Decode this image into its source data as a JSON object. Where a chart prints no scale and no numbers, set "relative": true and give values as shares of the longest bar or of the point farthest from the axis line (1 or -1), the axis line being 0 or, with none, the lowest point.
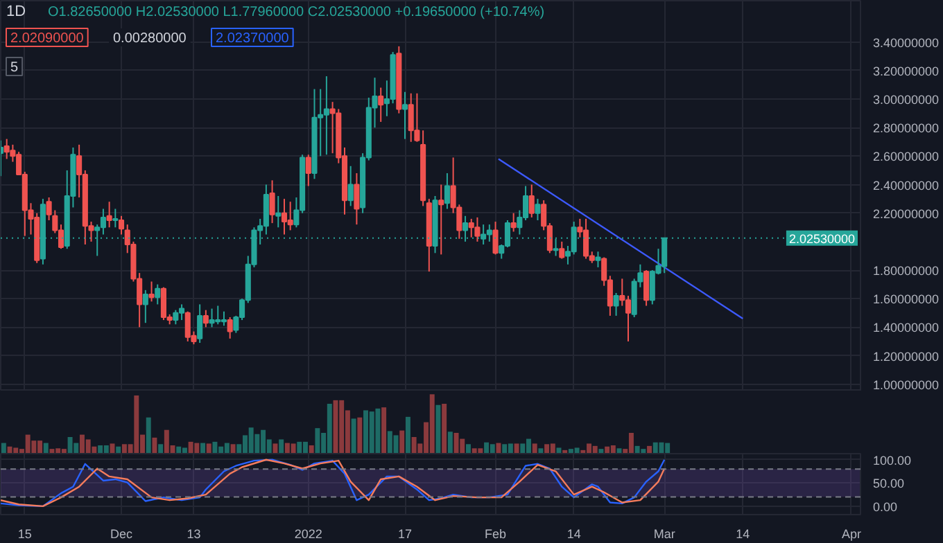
{
  "chart_data": [
    {
      "type": "candlestick",
      "title": "1D",
      "subtitle": "O1.82650000 H2.02530000 L1.77960000 C2.02530000 +0.19650000 (+10.74%)",
      "annotations": [
        "2.02090000",
        "0.00280000",
        "2.02370000",
        "5"
      ],
      "x": [
        "2021-11-11",
        "2021-11-12",
        "2021-11-13",
        "2021-11-14",
        "2021-11-15",
        "2021-11-16",
        "2021-11-17",
        "2021-11-18",
        "2021-11-19",
        "2021-11-20",
        "2021-11-21",
        "2021-11-22",
        "2021-11-23",
        "2021-11-24",
        "2021-11-25",
        "2021-11-26",
        "2021-11-27",
        "2021-11-28",
        "2021-11-29",
        "2021-11-30",
        "2021-12-01",
        "2021-12-02",
        "2021-12-03",
        "2021-12-04",
        "2021-12-05",
        "2021-12-06",
        "2021-12-07",
        "2021-12-08",
        "2021-12-09",
        "2021-12-10",
        "2021-12-11",
        "2021-12-12",
        "2021-12-13",
        "2021-12-14",
        "2021-12-15",
        "2021-12-16",
        "2021-12-17",
        "2021-12-18",
        "2021-12-19",
        "2021-12-20",
        "2021-12-21",
        "2021-12-22",
        "2021-12-23",
        "2021-12-24",
        "2021-12-25",
        "2021-12-26",
        "2021-12-27",
        "2021-12-28",
        "2021-12-29",
        "2021-12-30",
        "2021-12-31",
        "2022-01-01",
        "2022-01-02",
        "2022-01-03",
        "2022-01-04",
        "2022-01-05",
        "2022-01-06",
        "2022-01-07",
        "2022-01-08",
        "2022-01-09",
        "2022-01-10",
        "2022-01-11",
        "2022-01-12",
        "2022-01-13",
        "2022-01-14",
        "2022-01-15",
        "2022-01-16",
        "2022-01-17",
        "2022-01-18",
        "2022-01-19",
        "2022-01-20",
        "2022-01-21",
        "2022-01-22",
        "2022-01-23",
        "2022-01-24",
        "2022-01-25",
        "2022-01-26",
        "2022-01-27",
        "2022-01-28",
        "2022-01-29",
        "2022-01-30",
        "2022-01-31",
        "2022-02-01",
        "2022-02-02",
        "2022-02-03",
        "2022-02-04",
        "2022-02-05",
        "2022-02-06",
        "2022-02-07",
        "2022-02-08",
        "2022-02-09",
        "2022-02-10",
        "2022-02-11",
        "2022-02-12",
        "2022-02-13",
        "2022-02-14",
        "2022-02-15",
        "2022-02-16",
        "2022-02-17",
        "2022-02-18",
        "2022-02-19",
        "2022-02-20",
        "2022-02-21",
        "2022-02-22",
        "2022-02-23",
        "2022-02-24",
        "2022-02-25",
        "2022-02-26",
        "2022-02-27",
        "2022-02-28",
        "2022-03-01"
      ],
      "ohlc": [
        [
          2.62,
          2.71,
          2.46,
          2.66
        ],
        [
          2.67,
          2.72,
          2.58,
          2.63
        ],
        [
          2.64,
          2.68,
          2.56,
          2.6
        ],
        [
          2.61,
          2.63,
          2.47,
          2.47
        ],
        [
          2.47,
          2.49,
          2.04,
          2.22
        ],
        [
          2.22,
          2.27,
          2.05,
          2.16
        ],
        [
          2.17,
          2.2,
          1.85,
          1.87
        ],
        [
          1.88,
          2.3,
          1.84,
          2.26
        ],
        [
          2.28,
          2.31,
          2.15,
          2.19
        ],
        [
          2.18,
          2.22,
          2.06,
          2.08
        ],
        [
          2.08,
          2.12,
          1.95,
          1.96
        ],
        [
          1.97,
          2.5,
          1.95,
          2.32
        ],
        [
          2.32,
          2.66,
          2.24,
          2.61
        ],
        [
          2.6,
          2.68,
          2.31,
          2.47
        ],
        [
          2.47,
          2.5,
          1.98,
          2.11
        ],
        [
          2.11,
          2.14,
          2.0,
          2.08
        ],
        [
          2.08,
          2.12,
          1.9,
          2.1
        ],
        [
          2.1,
          2.23,
          2.05,
          2.17
        ],
        [
          2.18,
          2.28,
          2.1,
          2.15
        ],
        [
          2.15,
          2.23,
          2.1,
          2.16
        ],
        [
          2.15,
          2.18,
          2.05,
          2.09
        ],
        [
          2.08,
          2.12,
          1.92,
          1.98
        ],
        [
          1.98,
          2.0,
          1.72,
          1.74
        ],
        [
          1.74,
          1.78,
          1.4,
          1.56
        ],
        [
          1.56,
          1.66,
          1.43,
          1.63
        ],
        [
          1.63,
          1.72,
          1.58,
          1.61
        ],
        [
          1.61,
          1.7,
          1.56,
          1.67
        ],
        [
          1.67,
          1.68,
          1.45,
          1.47
        ],
        [
          1.47,
          1.49,
          1.42,
          1.45
        ],
        [
          1.45,
          1.52,
          1.42,
          1.5
        ],
        [
          1.5,
          1.56,
          1.45,
          1.53
        ],
        [
          1.5,
          1.51,
          1.3,
          1.33
        ],
        [
          1.34,
          1.37,
          1.28,
          1.3
        ],
        [
          1.32,
          1.56,
          1.29,
          1.48
        ],
        [
          1.48,
          1.52,
          1.4,
          1.43
        ],
        [
          1.43,
          1.53,
          1.4,
          1.45
        ],
        [
          1.44,
          1.55,
          1.42,
          1.45
        ],
        [
          1.44,
          1.51,
          1.41,
          1.45
        ],
        [
          1.45,
          1.47,
          1.32,
          1.37
        ],
        [
          1.38,
          1.48,
          1.36,
          1.47
        ],
        [
          1.47,
          1.6,
          1.45,
          1.59
        ],
        [
          1.59,
          1.9,
          1.57,
          1.84
        ],
        [
          1.84,
          2.1,
          1.82,
          2.08
        ],
        [
          2.08,
          2.16,
          1.98,
          2.11
        ],
        [
          2.11,
          2.4,
          2.05,
          2.33
        ],
        [
          2.34,
          2.43,
          2.13,
          2.19
        ],
        [
          2.18,
          2.32,
          2.1,
          2.2
        ],
        [
          2.2,
          2.3,
          2.05,
          2.14
        ],
        [
          2.15,
          2.28,
          2.08,
          2.12
        ],
        [
          2.12,
          2.31,
          2.1,
          2.22
        ],
        [
          2.22,
          2.61,
          2.2,
          2.59
        ],
        [
          2.59,
          2.61,
          2.39,
          2.48
        ],
        [
          2.48,
          3.07,
          2.44,
          2.87
        ],
        [
          2.87,
          3.07,
          2.6,
          2.89
        ],
        [
          2.89,
          3.16,
          2.61,
          2.93
        ],
        [
          2.93,
          2.98,
          2.62,
          2.9
        ],
        [
          2.9,
          2.93,
          2.55,
          2.59
        ],
        [
          2.6,
          2.66,
          2.19,
          2.29
        ],
        [
          2.29,
          2.53,
          2.25,
          2.4
        ],
        [
          2.4,
          2.48,
          2.12,
          2.23
        ],
        [
          2.24,
          2.62,
          2.2,
          2.59
        ],
        [
          2.59,
          3.01,
          2.57,
          2.94
        ],
        [
          2.94,
          3.15,
          2.8,
          3.02
        ],
        [
          3.02,
          3.08,
          2.84,
          2.96
        ],
        [
          2.97,
          3.13,
          2.88,
          3.0
        ],
        [
          3.0,
          3.33,
          2.97,
          3.31
        ],
        [
          3.32,
          3.37,
          2.9,
          2.93
        ],
        [
          2.93,
          3.05,
          2.72,
          2.96
        ],
        [
          2.96,
          3.04,
          2.7,
          2.78
        ],
        [
          2.78,
          3.04,
          2.7,
          2.71
        ],
        [
          2.68,
          2.78,
          2.25,
          2.29
        ],
        [
          2.27,
          2.3,
          1.79,
          1.97
        ],
        [
          1.97,
          2.32,
          1.92,
          2.29
        ],
        [
          2.29,
          2.4,
          1.91,
          2.26
        ],
        [
          2.27,
          2.48,
          2.23,
          2.39
        ],
        [
          2.39,
          2.59,
          2.2,
          2.24
        ],
        [
          2.24,
          2.26,
          2.02,
          2.08
        ],
        [
          2.08,
          2.18,
          2.0,
          2.13
        ],
        [
          2.13,
          2.16,
          2.03,
          2.1
        ],
        [
          2.1,
          2.17,
          2.0,
          2.04
        ],
        [
          2.02,
          2.12,
          1.98,
          2.05
        ],
        [
          2.05,
          2.12,
          2.0,
          2.08
        ],
        [
          2.08,
          2.14,
          1.91,
          1.92
        ],
        [
          1.92,
          1.98,
          1.88,
          1.97
        ],
        [
          1.97,
          2.15,
          1.96,
          2.13
        ],
        [
          2.13,
          2.2,
          2.07,
          2.1
        ],
        [
          2.1,
          2.22,
          2.05,
          2.17
        ],
        [
          2.17,
          2.39,
          2.15,
          2.32
        ],
        [
          2.32,
          2.4,
          2.17,
          2.2
        ],
        [
          2.2,
          2.3,
          2.15,
          2.26
        ],
        [
          2.26,
          2.29,
          2.08,
          2.11
        ],
        [
          2.11,
          2.13,
          1.92,
          1.94
        ],
        [
          1.94,
          2.02,
          1.9,
          1.95
        ],
        [
          1.95,
          2.0,
          1.88,
          1.89
        ],
        [
          1.9,
          1.97,
          1.84,
          1.93
        ],
        [
          1.93,
          2.14,
          1.91,
          2.1
        ],
        [
          2.1,
          2.16,
          2.03,
          2.07
        ],
        [
          2.08,
          2.16,
          1.88,
          1.9
        ],
        [
          1.9,
          1.93,
          1.85,
          1.87
        ],
        [
          1.87,
          1.93,
          1.82,
          1.89
        ],
        [
          1.88,
          1.89,
          1.69,
          1.73
        ],
        [
          1.73,
          1.76,
          1.48,
          1.55
        ],
        [
          1.55,
          1.64,
          1.48,
          1.62
        ],
        [
          1.62,
          1.74,
          1.55,
          1.59
        ],
        [
          1.59,
          1.62,
          1.3,
          1.5
        ],
        [
          1.49,
          1.74,
          1.47,
          1.72
        ],
        [
          1.72,
          1.84,
          1.68,
          1.78
        ],
        [
          1.79,
          1.8,
          1.55,
          1.59
        ],
        [
          1.59,
          1.8,
          1.56,
          1.79
        ],
        [
          1.78,
          1.95,
          1.77,
          1.83
        ],
        [
          1.8265,
          2.0253,
          1.7796,
          2.0253
        ]
      ],
      "colors": [
        "#26a69a",
        "#ef5350",
        "#ef5350",
        "#ef5350",
        "#ef5350",
        "#ef5350",
        "#ef5350",
        "#26a69a",
        "#ef5350",
        "#ef5350",
        "#ef5350",
        "#26a69a",
        "#26a69a",
        "#ef5350",
        "#ef5350",
        "#ef5350",
        "#26a69a",
        "#26a69a",
        "#ef5350",
        "#26a69a",
        "#ef5350",
        "#ef5350",
        "#ef5350",
        "#ef5350",
        "#26a69a",
        "#ef5350",
        "#26a69a",
        "#ef5350",
        "#ef5350",
        "#26a69a",
        "#26a69a",
        "#ef5350",
        "#ef5350",
        "#26a69a",
        "#ef5350",
        "#26a69a",
        "#26a69a",
        "#26a69a",
        "#ef5350",
        "#26a69a",
        "#26a69a",
        "#26a69a",
        "#26a69a",
        "#26a69a",
        "#26a69a",
        "#ef5350",
        "#26a69a",
        "#ef5350",
        "#ef5350",
        "#26a69a",
        "#26a69a",
        "#ef5350",
        "#26a69a",
        "#26a69a",
        "#26a69a",
        "#ef5350",
        "#ef5350",
        "#ef5350",
        "#26a69a",
        "#ef5350",
        "#26a69a",
        "#26a69a",
        "#26a69a",
        "#ef5350",
        "#26a69a",
        "#26a69a",
        "#ef5350",
        "#26a69a",
        "#ef5350",
        "#ef5350",
        "#ef5350",
        "#ef5350",
        "#26a69a",
        "#ef5350",
        "#26a69a",
        "#ef5350",
        "#ef5350",
        "#26a69a",
        "#ef5350",
        "#ef5350",
        "#26a69a",
        "#26a69a",
        "#ef5350",
        "#26a69a",
        "#26a69a",
        "#ef5350",
        "#26a69a",
        "#26a69a",
        "#ef5350",
        "#26a69a",
        "#ef5350",
        "#ef5350",
        "#26a69a",
        "#ef5350",
        "#26a69a",
        "#26a69a",
        "#ef5350",
        "#ef5350",
        "#ef5350",
        "#26a69a",
        "#ef5350",
        "#ef5350",
        "#26a69a",
        "#ef5350",
        "#ef5350",
        "#26a69a",
        "#26a69a",
        "#ef5350",
        "#26a69a",
        "#26a69a",
        "#26a69a"
      ],
      "series": [
        {
          "type": "line",
          "x": [
            "2022-02-01T12:00",
            "2022-03-14"
          ],
          "values": [
            2.58,
            1.46
          ],
          "color": "#3d5afe"
        }
      ],
      "xlim": [
        "2021-11-11",
        "2022-04-02T12:00"
      ],
      "xticks": [
        {
          "value": "2021-11-15",
          "label": null
        },
        {
          "value": "2021-12-01",
          "label": null
        },
        {
          "value": "2021-12-13",
          "label": null
        },
        {
          "value": "2022-01-01",
          "label": null
        },
        {
          "value": "2022-01-17",
          "label": null
        },
        {
          "value": "2022-02-01",
          "label": null
        },
        {
          "value": "2022-02-14",
          "label": null
        },
        {
          "value": "2022-03-01",
          "label": null
        },
        {
          "value": "2022-03-14",
          "label": null
        },
        {
          "value": "2022-04-01",
          "label": null
        }
      ],
      "ylim": [
        0.95,
        3.69
      ],
      "yticks": [
        {
          "value": 1.0,
          "label": "1.00000000"
        },
        {
          "value": 1.2,
          "label": "1.20000000"
        },
        {
          "value": 1.4,
          "label": "1.40000000"
        },
        {
          "value": 1.6,
          "label": "1.60000000"
        },
        {
          "value": 1.8,
          "label": "1.80000000"
        },
        {
          "value": 2.2,
          "label": "2.20000000"
        },
        {
          "value": 2.4,
          "label": "2.40000000"
        },
        {
          "value": 2.6,
          "label": "2.60000000"
        },
        {
          "value": 2.8,
          "label": "2.80000000"
        },
        {
          "value": 3.0,
          "label": "3.00000000"
        },
        {
          "value": 3.2,
          "label": "3.20000000"
        },
        {
          "value": 3.4,
          "label": "3.40000000"
        }
      ],
      "ref_lines": [
        {
          "axis": "y",
          "value": 2.0253,
          "label": "2.02530000",
          "color": "#26a69a",
          "line_style": "dotted"
        }
      ],
      "grid": true,
      "tick_labels": "y"
    },
    {
      "type": "bar",
      "relative": true,
      "categories": [
        null,
        null,
        null,
        null,
        null,
        null,
        null,
        null,
        null,
        null,
        null,
        null,
        null,
        null,
        null,
        null,
        null,
        null,
        null,
        null,
        null,
        null,
        null,
        null,
        null,
        null,
        null,
        null,
        null,
        null,
        null,
        null,
        null,
        null,
        null,
        null,
        null,
        null,
        null,
        null,
        null,
        null,
        null,
        null,
        null,
        null,
        null,
        null,
        null,
        null,
        null,
        null,
        null,
        null,
        null,
        null,
        null,
        null,
        null,
        null,
        null,
        null,
        null,
        null,
        null,
        null,
        null,
        null,
        null,
        null,
        null,
        null,
        null,
        null,
        null,
        null,
        null,
        null,
        null,
        null,
        null,
        null,
        null,
        null,
        null,
        null,
        null,
        null,
        null,
        null,
        null,
        null,
        null,
        null,
        null,
        null,
        null,
        null,
        null,
        null,
        null,
        null,
        null,
        null,
        null,
        null,
        null,
        null,
        null,
        null,
        null
      ],
      "values": [
        0.18,
        0.12,
        0.1,
        0.08,
        0.32,
        0.22,
        0.22,
        0.18,
        0.08,
        0.09,
        0.08,
        0.28,
        0.18,
        0.32,
        0.24,
        0.12,
        0.14,
        0.14,
        0.17,
        0.12,
        0.16,
        0.16,
        0.98,
        0.32,
        0.61,
        0.27,
        0.16,
        0.4,
        0.14,
        0.12,
        0.1,
        0.2,
        0.18,
        0.18,
        0.17,
        0.2,
        0.12,
        0.18,
        0.16,
        0.16,
        0.31,
        0.44,
        0.33,
        0.4,
        0.24,
        0.17,
        0.24,
        0.18,
        0.17,
        0.2,
        0.2,
        0.14,
        0.43,
        0.35,
        0.84,
        0.9,
        0.9,
        0.73,
        0.59,
        0.61,
        0.73,
        0.71,
        0.76,
        0.78,
        0.38,
        0.31,
        0.39,
        0.62,
        0.28,
        0.17,
        0.53,
        1,
        0.82,
        0.84,
        0.37,
        0.35,
        0.25,
        0.16,
        0.09,
        0.09,
        0.19,
        0.16,
        0.18,
        0.16,
        0.17,
        0.17,
        0.17,
        0.25,
        0.17,
        0.09,
        0.16,
        0.17,
        0.1,
        0.06,
        0.08,
        0.1,
        0.06,
        0.17,
        0.13,
        0.08,
        0.12,
        0.14,
        0.09,
        0.08,
        0.35,
        0.13,
        0.08,
        0.13,
        0.19,
        0.19,
        0.18
      ],
      "colors": [
        "#1e6b65",
        "#8b3a3d",
        "#8b3a3d",
        "#8b3a3d",
        "#8b3a3d",
        "#8b3a3d",
        "#8b3a3d",
        "#1e6b65",
        "#8b3a3d",
        "#8b3a3d",
        "#8b3a3d",
        "#1e6b65",
        "#1e6b65",
        "#8b3a3d",
        "#8b3a3d",
        "#8b3a3d",
        "#1e6b65",
        "#1e6b65",
        "#8b3a3d",
        "#1e6b65",
        "#8b3a3d",
        "#8b3a3d",
        "#8b3a3d",
        "#8b3a3d",
        "#1e6b65",
        "#8b3a3d",
        "#1e6b65",
        "#8b3a3d",
        "#8b3a3d",
        "#1e6b65",
        "#1e6b65",
        "#8b3a3d",
        "#8b3a3d",
        "#1e6b65",
        "#8b3a3d",
        "#1e6b65",
        "#1e6b65",
        "#1e6b65",
        "#8b3a3d",
        "#1e6b65",
        "#1e6b65",
        "#1e6b65",
        "#1e6b65",
        "#1e6b65",
        "#1e6b65",
        "#8b3a3d",
        "#1e6b65",
        "#8b3a3d",
        "#8b3a3d",
        "#1e6b65",
        "#1e6b65",
        "#8b3a3d",
        "#1e6b65",
        "#1e6b65",
        "#1e6b65",
        "#8b3a3d",
        "#8b3a3d",
        "#8b3a3d",
        "#1e6b65",
        "#8b3a3d",
        "#1e6b65",
        "#1e6b65",
        "#1e6b65",
        "#8b3a3d",
        "#1e6b65",
        "#1e6b65",
        "#8b3a3d",
        "#1e6b65",
        "#8b3a3d",
        "#8b3a3d",
        "#8b3a3d",
        "#8b3a3d",
        "#1e6b65",
        "#8b3a3d",
        "#1e6b65",
        "#8b3a3d",
        "#8b3a3d",
        "#1e6b65",
        "#8b3a3d",
        "#8b3a3d",
        "#1e6b65",
        "#1e6b65",
        "#8b3a3d",
        "#1e6b65",
        "#1e6b65",
        "#8b3a3d",
        "#1e6b65",
        "#1e6b65",
        "#8b3a3d",
        "#1e6b65",
        "#8b3a3d",
        "#8b3a3d",
        "#1e6b65",
        "#8b3a3d",
        "#1e6b65",
        "#1e6b65",
        "#8b3a3d",
        "#8b3a3d",
        "#8b3a3d",
        "#1e6b65",
        "#8b3a3d",
        "#8b3a3d",
        "#1e6b65",
        "#8b3a3d",
        "#8b3a3d",
        "#1e6b65",
        "#1e6b65",
        "#8b3a3d",
        "#1e6b65",
        "#1e6b65",
        "#1e6b65"
      ]
    },
    {
      "type": "line",
      "series": [
        {
          "color": "#2962ff",
          "x": [
            "2021-11-11",
            "2021-11-14",
            "2021-11-18",
            "2021-11-21",
            "2021-11-23",
            "2021-11-25",
            "2021-11-28",
            "2021-11-30",
            "2021-12-02",
            "2021-12-05",
            "2021-12-08",
            "2021-12-11",
            "2021-12-14",
            "2021-12-15",
            "2021-12-18",
            "2021-12-20",
            "2021-12-23",
            "2021-12-26",
            "2021-12-29",
            "2021-12-31",
            "2022-01-02",
            "2022-01-05",
            "2022-01-07",
            "2022-01-09",
            "2022-01-11",
            "2022-01-14",
            "2022-01-16",
            "2022-01-19",
            "2022-01-21",
            "2022-01-23",
            "2022-01-25",
            "2022-01-28",
            "2022-01-31",
            "2022-02-03",
            "2022-02-06",
            "2022-02-08",
            "2022-02-10",
            "2022-02-12",
            "2022-02-14",
            "2022-02-17",
            "2022-02-18",
            "2022-02-20",
            "2022-02-22",
            "2022-02-24",
            "2022-02-26",
            "2022-02-28",
            "2022-03-01"
          ],
          "values": [
            6,
            2,
            0,
            28,
            42,
            91,
            55,
            58,
            51,
            11,
            19,
            13,
            19,
            36,
            75,
            87,
            98,
            100,
            89,
            78,
            92,
            98,
            70,
            13,
            25,
            64,
            64,
            36,
            13,
            17,
            25,
            19,
            19,
            25,
            87,
            91,
            81,
            42,
            19,
            47,
            42,
            8,
            6,
            19,
            53,
            75,
            100
          ]
        },
        {
          "color": "#f57c5c",
          "x": [
            "2021-11-11",
            "2021-11-14",
            "2021-11-18",
            "2021-11-21",
            "2021-11-24",
            "2021-11-27",
            "2021-11-29",
            "2021-12-02",
            "2021-12-06",
            "2021-12-09",
            "2021-12-12",
            "2021-12-15",
            "2021-12-19",
            "2021-12-21",
            "2021-12-25",
            "2021-12-28",
            "2021-12-31",
            "2022-01-03",
            "2022-01-06",
            "2022-01-08",
            "2022-01-11",
            "2022-01-13",
            "2022-01-16",
            "2022-01-19",
            "2022-01-22",
            "2022-01-25",
            "2022-01-29",
            "2022-02-02",
            "2022-02-05",
            "2022-02-08",
            "2022-02-11",
            "2022-02-14",
            "2022-02-17",
            "2022-02-19",
            "2022-02-22",
            "2022-02-25",
            "2022-02-28",
            "2022-03-01"
          ],
          "values": [
            13,
            4,
            0,
            19,
            42,
            81,
            64,
            58,
            19,
            13,
            17,
            25,
            70,
            84,
            100,
            92,
            81,
            92,
            98,
            53,
            13,
            58,
            64,
            42,
            13,
            22,
            19,
            19,
            53,
            89,
            75,
            25,
            42,
            30,
            8,
            13,
            53,
            81
          ]
        }
      ],
      "xlim": [
        "2021-11-11",
        "2022-04-02T12:00"
      ],
      "xticks": [
        {
          "value": "2021-11-15",
          "label": "15"
        },
        {
          "value": "2021-12-01",
          "label": "Dec"
        },
        {
          "value": "2021-12-13",
          "label": "13"
        },
        {
          "value": "2022-01-01",
          "label": "2022"
        },
        {
          "value": "2022-01-17",
          "label": "17"
        },
        {
          "value": "2022-02-01",
          "label": "Feb"
        },
        {
          "value": "2022-02-14",
          "label": "14"
        },
        {
          "value": "2022-03-01",
          "label": "Mar"
        },
        {
          "value": "2022-03-14",
          "label": "14"
        },
        {
          "value": "2022-04-01",
          "label": "Apr"
        }
      ],
      "ylim": [
        -18,
        113
      ],
      "yticks": [
        {
          "value": 0,
          "label": "0.00"
        },
        {
          "value": 50,
          "label": "50.00"
        },
        {
          "value": 100,
          "label": "100.00"
        }
      ],
      "bands": [
        {
          "axis": "y",
          "from": 20,
          "to": 80,
          "color": "#7e57c2"
        }
      ],
      "ref_lines": [
        {
          "axis": "y",
          "value": 20,
          "color": "#787b86",
          "line_style": "dashed"
        },
        {
          "axis": "y",
          "value": 80,
          "color": "#787b86",
          "line_style": "dashed"
        }
      ],
      "grid": true
    }
  ]
}
